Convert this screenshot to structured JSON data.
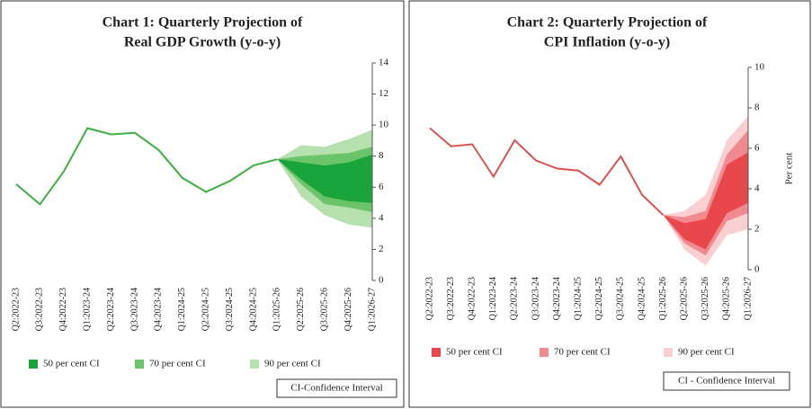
{
  "chart_data": [
    {
      "type": "fan",
      "title": [
        "Chart 1: Quarterly Projection of",
        "Real GDP Growth (y-o-y)"
      ],
      "categories": [
        "Q2:2022-23",
        "Q3:2022-23",
        "Q4:2022-23",
        "Q1:2023-24",
        "Q2:2023-24",
        "Q3:2023-24",
        "Q4:2023-24",
        "Q1:2024-25",
        "Q2:2024-25",
        "Q3:2024-25",
        "Q4:2024-25",
        "Q1:2025-26",
        "Q2:2025-26",
        "Q3:2025-26",
        "Q4:2025-26",
        "Q1:2026-27"
      ],
      "values": [
        6.2,
        4.9,
        7.0,
        9.8,
        9.4,
        9.5,
        8.4,
        6.6,
        5.7,
        6.4,
        7.4,
        7.8,
        null,
        null,
        null,
        null
      ],
      "color": "#3cb043",
      "bands": [
        {
          "name": "50 per cent CI",
          "color": "#1aa53c",
          "lower": [
            null,
            null,
            null,
            null,
            null,
            null,
            null,
            null,
            null,
            null,
            null,
            7.8,
            6.5,
            5.4,
            5.1,
            5.0
          ],
          "upper": [
            null,
            null,
            null,
            null,
            null,
            null,
            null,
            null,
            null,
            null,
            null,
            7.8,
            7.6,
            7.4,
            7.6,
            8.1
          ]
        },
        {
          "name": "70 per cent CI",
          "color": "#6cc46a",
          "lower": [
            null,
            null,
            null,
            null,
            null,
            null,
            null,
            null,
            null,
            null,
            null,
            7.8,
            6.2,
            4.9,
            4.7,
            4.4
          ],
          "upper": [
            null,
            null,
            null,
            null,
            null,
            null,
            null,
            null,
            null,
            null,
            null,
            7.8,
            8.0,
            8.1,
            8.2,
            8.6
          ]
        },
        {
          "name": "90 per cent CI",
          "color": "#b6e0ad",
          "lower": [
            null,
            null,
            null,
            null,
            null,
            null,
            null,
            null,
            null,
            null,
            null,
            7.8,
            5.4,
            4.2,
            3.6,
            3.4
          ],
          "upper": [
            null,
            null,
            null,
            null,
            null,
            null,
            null,
            null,
            null,
            null,
            null,
            7.8,
            8.7,
            8.6,
            9.1,
            9.7
          ]
        }
      ],
      "ylim": [
        0,
        14
      ],
      "yticks": [
        0,
        2,
        4,
        6,
        8,
        10,
        12,
        14
      ],
      "note": "CI-Confidence Interval"
    },
    {
      "type": "fan",
      "title": [
        "Chart 2: Quarterly Projection of",
        "CPI Inflation (y-o-y)"
      ],
      "categories": [
        "Q2:2022-23",
        "Q3:2022-23",
        "Q4:2022-23",
        "Q1:2023-24",
        "Q2:2023-24",
        "Q3:2023-24",
        "Q4:2023-24",
        "Q1:2024-25",
        "Q2:2024-25",
        "Q3:2024-25",
        "Q4:2024-25",
        "Q1:2025-26",
        "Q2:2025-26",
        "Q3:2025-26",
        "Q4:2025-26",
        "Q1:2026-27"
      ],
      "values": [
        7.0,
        6.1,
        6.2,
        4.6,
        6.4,
        5.4,
        5.0,
        4.9,
        4.2,
        5.6,
        3.7,
        2.7,
        null,
        null,
        null,
        null
      ],
      "color": "#d9534f",
      "bands": [
        {
          "name": "50 per cent CI",
          "color": "#e8474b",
          "lower": [
            null,
            null,
            null,
            null,
            null,
            null,
            null,
            null,
            null,
            null,
            null,
            2.7,
            1.5,
            1.0,
            2.8,
            3.3
          ],
          "upper": [
            null,
            null,
            null,
            null,
            null,
            null,
            null,
            null,
            null,
            null,
            null,
            2.7,
            2.3,
            2.5,
            5.2,
            5.8
          ]
        },
        {
          "name": "70 per cent CI",
          "color": "#f08a8f",
          "lower": [
            null,
            null,
            null,
            null,
            null,
            null,
            null,
            null,
            null,
            null,
            null,
            2.7,
            1.3,
            0.7,
            2.4,
            2.8
          ],
          "upper": [
            null,
            null,
            null,
            null,
            null,
            null,
            null,
            null,
            null,
            null,
            null,
            2.7,
            2.6,
            2.9,
            5.7,
            6.9
          ]
        },
        {
          "name": "90 per cent CI",
          "color": "#f9cfd2",
          "lower": [
            null,
            null,
            null,
            null,
            null,
            null,
            null,
            null,
            null,
            null,
            null,
            2.7,
            1.0,
            0.2,
            1.7,
            2.0
          ],
          "upper": [
            null,
            null,
            null,
            null,
            null,
            null,
            null,
            null,
            null,
            null,
            null,
            2.7,
            2.9,
            3.7,
            6.4,
            7.6
          ]
        }
      ],
      "ylim": [
        0,
        10
      ],
      "yticks": [
        0,
        2,
        4,
        6,
        8,
        10
      ],
      "y_label": "Per cent",
      "note": "CI - Confidence Interval"
    }
  ]
}
